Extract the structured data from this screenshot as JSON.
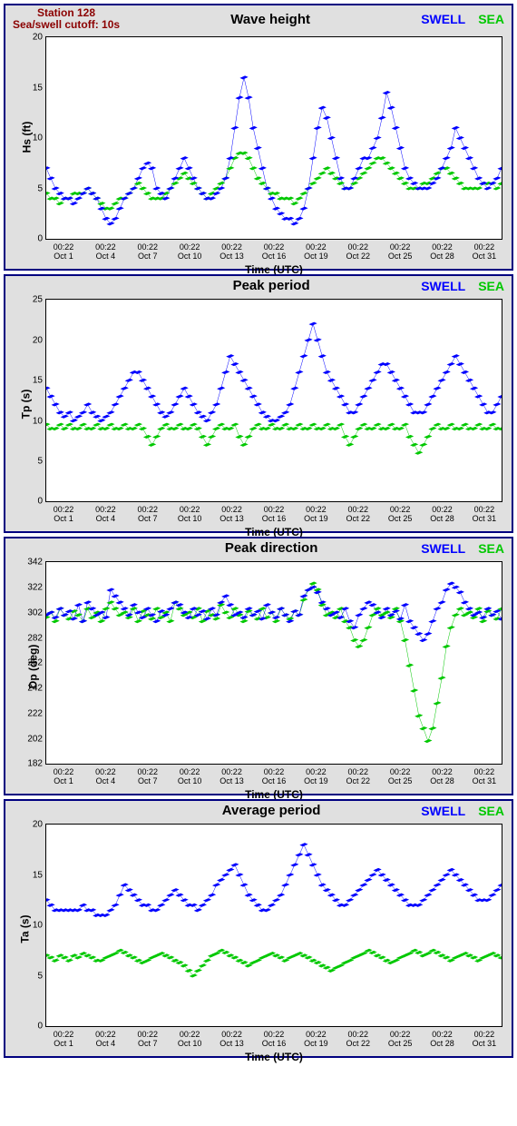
{
  "station": "Station 128",
  "cutoff": "Sea/swell cutoff: 10s",
  "legend": {
    "swell": "SWELL",
    "sea": "SEA"
  },
  "xaxis": {
    "label": "Time (UTC)",
    "ticks": [
      "00:22\nOct 1",
      "00:22\nOct 4",
      "00:22\nOct 7",
      "00:22\nOct 10",
      "00:22\nOct 13",
      "00:22\nOct 16",
      "00:22\nOct 19",
      "00:22\nOct 22",
      "00:22\nOct 25",
      "00:22\nOct 28",
      "00:22\nOct 31"
    ]
  },
  "colors": {
    "swell": "#0000ff",
    "sea": "#00c800",
    "panel_bg": "#e0e0e0",
    "plot_bg": "#ffffff",
    "border": "#000080",
    "station_text": "#8b0000"
  },
  "charts": [
    {
      "title": "Wave height",
      "ylabel": "Hs (ft)",
      "ylim": [
        0,
        20
      ],
      "ytick_step": 5,
      "swell": [
        7,
        6,
        5,
        4.5,
        4,
        4,
        3.5,
        4,
        4.5,
        5,
        4.5,
        4,
        3,
        2,
        1.5,
        2,
        3,
        4,
        4.5,
        5,
        6,
        7,
        7.5,
        7,
        5,
        4.5,
        4,
        5,
        6,
        7,
        8,
        7,
        6,
        5,
        4.5,
        4,
        4,
        4.5,
        5,
        6,
        8,
        11,
        14,
        16,
        14,
        11,
        9,
        7,
        5,
        4,
        3,
        2.5,
        2,
        2,
        1.5,
        2,
        3,
        5,
        8,
        11,
        13,
        12,
        10,
        8,
        6,
        5,
        5,
        6,
        7,
        8,
        8,
        9,
        10,
        12,
        14.5,
        13,
        11,
        9,
        7,
        6,
        5.5,
        5,
        5,
        5,
        5.5,
        6,
        7,
        8,
        9,
        11,
        10,
        9,
        8,
        7,
        6,
        5.5,
        5,
        5.5,
        6,
        7
      ],
      "sea": [
        4.5,
        4,
        4,
        3.5,
        4,
        4,
        4.5,
        4.5,
        4.5,
        5,
        4.5,
        4,
        3.5,
        3,
        3,
        3.5,
        4,
        4,
        4.5,
        5,
        5.5,
        5,
        4.5,
        4,
        4,
        4,
        4.5,
        5,
        5.5,
        6,
        6.5,
        6,
        5.5,
        5,
        4.5,
        4,
        4.5,
        5,
        5.5,
        6,
        7,
        8,
        8.5,
        8.5,
        8,
        7,
        6,
        5.5,
        5,
        4.5,
        4.5,
        4,
        4,
        4,
        3.5,
        4,
        4.5,
        5,
        5.5,
        6,
        6.5,
        7,
        6.5,
        6,
        5.5,
        5,
        5,
        5.5,
        6,
        6.5,
        7,
        7.5,
        8,
        8,
        7.5,
        7,
        6.5,
        6,
        5.5,
        5,
        5,
        5,
        5.5,
        5.5,
        6,
        6.5,
        7,
        7,
        6.5,
        6,
        5.5,
        5,
        5,
        5,
        5,
        5.5,
        5.5,
        5.5,
        5,
        5.5
      ]
    },
    {
      "title": "Peak period",
      "ylabel": "Tp (s)",
      "ylim": [
        0,
        25
      ],
      "ytick_step": 5,
      "swell": [
        14,
        13,
        12,
        11,
        10.5,
        11,
        10,
        10.5,
        11,
        12,
        11,
        10.5,
        10,
        10.5,
        11,
        12,
        13,
        14,
        15,
        16,
        16,
        15,
        14,
        13,
        12,
        11,
        10.5,
        11,
        12,
        13,
        14,
        13,
        12,
        11,
        10.5,
        10,
        11,
        12,
        14,
        16,
        18,
        17,
        16,
        15,
        14,
        13,
        12,
        11,
        10.5,
        10,
        10,
        10.5,
        11,
        12,
        14,
        16,
        18,
        20,
        22,
        20,
        18,
        16,
        15,
        14,
        13,
        12,
        11,
        11,
        12,
        13,
        14,
        15,
        16,
        17,
        17,
        16,
        15,
        14,
        13,
        12,
        11,
        11,
        11,
        12,
        13,
        14,
        15,
        16,
        17,
        18,
        17,
        16,
        15,
        14,
        13,
        12,
        11,
        11,
        12,
        13
      ],
      "sea": [
        9.5,
        9,
        9,
        9.5,
        9,
        9.5,
        9,
        9,
        9.5,
        9,
        9,
        9.5,
        9,
        9,
        9.5,
        9,
        9,
        9.5,
        9,
        9,
        9.5,
        9,
        8,
        7,
        8,
        9,
        9.5,
        9,
        9,
        9.5,
        9,
        9,
        9.5,
        9,
        8,
        7,
        8,
        9,
        9.5,
        9,
        9,
        9.5,
        8,
        7,
        8,
        9,
        9.5,
        9,
        9,
        9.5,
        9,
        9,
        9.5,
        9,
        9,
        9.5,
        9,
        9,
        9.5,
        9,
        9,
        9.5,
        9,
        9,
        9.5,
        8,
        7,
        8,
        9,
        9.5,
        9,
        9,
        9.5,
        9,
        9,
        9.5,
        9,
        9,
        9.5,
        8,
        7,
        6,
        7,
        8,
        9,
        9.5,
        9,
        9,
        9.5,
        9,
        9,
        9.5,
        9,
        9,
        9.5,
        9,
        9,
        9.5,
        9,
        9
      ]
    },
    {
      "title": "Peak direction",
      "ylabel": "Dp (deg)",
      "ylim": [
        182,
        342
      ],
      "ytick_step": 20,
      "swell": [
        300,
        302,
        298,
        305,
        300,
        303,
        297,
        308,
        295,
        310,
        305,
        300,
        302,
        298,
        320,
        315,
        310,
        305,
        300,
        308,
        302,
        298,
        305,
        300,
        295,
        303,
        300,
        305,
        310,
        308,
        302,
        298,
        305,
        300,
        303,
        297,
        305,
        300,
        310,
        315,
        308,
        300,
        302,
        298,
        305,
        300,
        303,
        297,
        308,
        302,
        298,
        305,
        300,
        295,
        303,
        300,
        315,
        320,
        322,
        318,
        310,
        305,
        300,
        302,
        298,
        305,
        295,
        290,
        300,
        305,
        310,
        308,
        302,
        298,
        305,
        300,
        303,
        297,
        308,
        295,
        290,
        285,
        280,
        285,
        295,
        305,
        310,
        320,
        325,
        322,
        318,
        310,
        305,
        300,
        302,
        298,
        305,
        300,
        303,
        297
      ],
      "sea": [
        298,
        302,
        295,
        305,
        300,
        297,
        303,
        300,
        295,
        305,
        298,
        302,
        295,
        305,
        310,
        305,
        300,
        302,
        298,
        305,
        295,
        303,
        300,
        297,
        305,
        298,
        302,
        295,
        310,
        305,
        300,
        302,
        298,
        305,
        295,
        303,
        300,
        297,
        308,
        302,
        298,
        305,
        300,
        295,
        303,
        300,
        297,
        305,
        298,
        302,
        295,
        305,
        300,
        297,
        303,
        300,
        312,
        320,
        325,
        320,
        308,
        300,
        302,
        298,
        305,
        295,
        290,
        280,
        275,
        280,
        290,
        300,
        305,
        300,
        302,
        298,
        305,
        295,
        280,
        260,
        240,
        220,
        210,
        200,
        210,
        230,
        250,
        275,
        290,
        300,
        305,
        300,
        302,
        298,
        305,
        295,
        303,
        300,
        297,
        305
      ]
    },
    {
      "title": "Average period",
      "ylabel": "Ta (s)",
      "ylim": [
        0,
        20
      ],
      "ytick_step": 5,
      "swell": [
        12.5,
        12,
        11.5,
        11.5,
        11.5,
        11.5,
        11.5,
        11.5,
        12,
        11.5,
        11.5,
        11,
        11,
        11,
        11.5,
        12,
        13,
        14,
        13.5,
        13,
        12.5,
        12,
        12,
        11.5,
        11.5,
        12,
        12.5,
        13,
        13.5,
        13,
        12.5,
        12,
        12,
        11.5,
        12,
        12.5,
        13,
        14,
        14.5,
        15,
        15.5,
        16,
        15,
        14,
        13,
        12.5,
        12,
        11.5,
        11.5,
        12,
        12.5,
        13,
        14,
        15,
        16,
        17,
        18,
        17,
        16,
        15,
        14,
        13.5,
        13,
        12.5,
        12,
        12,
        12.5,
        13,
        13.5,
        14,
        14.5,
        15,
        15.5,
        15,
        14.5,
        14,
        13.5,
        13,
        12.5,
        12,
        12,
        12,
        12.5,
        13,
        13.5,
        14,
        14.5,
        15,
        15.5,
        15,
        14.5,
        14,
        13.5,
        13,
        12.5,
        12.5,
        12.5,
        13,
        13.5,
        14
      ],
      "sea": [
        7,
        6.8,
        6.5,
        7,
        6.8,
        6.5,
        7,
        6.8,
        7.2,
        7,
        6.8,
        6.5,
        6.5,
        6.8,
        7,
        7.2,
        7.5,
        7.3,
        7,
        6.8,
        6.5,
        6.3,
        6.5,
        6.8,
        7,
        7.2,
        7,
        6.8,
        6.5,
        6.3,
        6,
        5.5,
        5,
        5.5,
        6,
        6.5,
        7,
        7.2,
        7.5,
        7.3,
        7,
        6.8,
        6.5,
        6.3,
        6,
        6.3,
        6.5,
        6.8,
        7,
        7.2,
        7,
        6.8,
        6.5,
        6.8,
        7,
        7.2,
        7,
        6.8,
        6.5,
        6.3,
        6,
        5.8,
        5.5,
        5.8,
        6,
        6.3,
        6.5,
        6.8,
        7,
        7.2,
        7.5,
        7.3,
        7,
        6.8,
        6.5,
        6.3,
        6.5,
        6.8,
        7,
        7.2,
        7.5,
        7.3,
        7,
        7.2,
        7.5,
        7.3,
        7,
        6.8,
        6.5,
        6.8,
        7,
        7.2,
        7,
        6.8,
        6.5,
        6.8,
        7,
        7.2,
        7,
        6.8
      ]
    }
  ]
}
